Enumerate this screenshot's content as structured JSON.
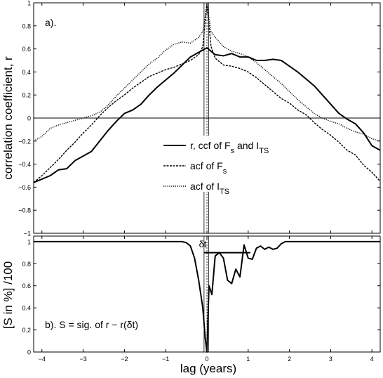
{
  "chart_data": [
    {
      "type": "line",
      "panel_label": "a).",
      "ylabel": "correlation coefficient, r",
      "xlim": [
        -4.2,
        4.2
      ],
      "ylim": [
        -1,
        1
      ],
      "yticks": [
        -1,
        -0.8,
        -0.6,
        -0.4,
        -0.2,
        0,
        0.2,
        0.4,
        0.6,
        0.8,
        1
      ],
      "ytick_labels": [
        "−1",
        "−0.8",
        "−0.6",
        "−0.4",
        "−0.2",
        "0",
        "0.2",
        "0.4",
        "0.6",
        "0.8",
        "1"
      ],
      "reference_lines": {
        "zero_line_y": 0,
        "vertical_lines_x": [
          -0.07,
          0,
          0.04
        ]
      },
      "legend": {
        "placement": "center-right",
        "entries": [
          {
            "base": "r, ccf of F",
            "sub": "s",
            "mid": " and I",
            "sub2": "TS",
            "style": "solid-thick"
          },
          {
            "base": "acf of F",
            "sub": "s",
            "style": "dashed"
          },
          {
            "base": "acf of I",
            "sub": "TS",
            "style": "dotted"
          }
        ]
      },
      "series": [
        {
          "style": "solid-thick",
          "x": [
            -4.2,
            -4.0,
            -3.8,
            -3.6,
            -3.4,
            -3.2,
            -3.0,
            -2.8,
            -2.6,
            -2.4,
            -2.2,
            -2.0,
            -1.8,
            -1.6,
            -1.4,
            -1.2,
            -1.0,
            -0.8,
            -0.6,
            -0.4,
            -0.2,
            0.0,
            0.2,
            0.4,
            0.6,
            0.8,
            1.0,
            1.2,
            1.4,
            1.6,
            1.8,
            2.0,
            2.2,
            2.4,
            2.6,
            2.8,
            3.0,
            3.2,
            3.4,
            3.6,
            3.8,
            4.0,
            4.2
          ],
          "y": [
            -0.56,
            -0.53,
            -0.5,
            -0.45,
            -0.44,
            -0.37,
            -0.33,
            -0.29,
            -0.2,
            -0.11,
            -0.03,
            0.04,
            0.07,
            0.12,
            0.2,
            0.27,
            0.33,
            0.39,
            0.46,
            0.53,
            0.57,
            0.61,
            0.55,
            0.54,
            0.56,
            0.53,
            0.53,
            0.5,
            0.5,
            0.51,
            0.5,
            0.45,
            0.4,
            0.34,
            0.28,
            0.2,
            0.12,
            0.04,
            -0.01,
            -0.05,
            -0.13,
            -0.24,
            -0.28
          ]
        },
        {
          "style": "dashed",
          "x": [
            -4.2,
            -4.0,
            -3.8,
            -3.6,
            -3.4,
            -3.2,
            -3.0,
            -2.8,
            -2.6,
            -2.4,
            -2.2,
            -2.0,
            -1.8,
            -1.6,
            -1.4,
            -1.2,
            -1.0,
            -0.8,
            -0.6,
            -0.4,
            -0.2,
            -0.1,
            0.0,
            0.1,
            0.2,
            0.4,
            0.6,
            0.8,
            1.0,
            1.2,
            1.4,
            1.6,
            1.8,
            2.0,
            2.2,
            2.4,
            2.6,
            2.8,
            3.0,
            3.2,
            3.4,
            3.6,
            3.8,
            4.0,
            4.2
          ],
          "y": [
            -0.56,
            -0.5,
            -0.43,
            -0.36,
            -0.28,
            -0.21,
            -0.13,
            -0.06,
            0.02,
            0.09,
            0.15,
            0.2,
            0.26,
            0.31,
            0.36,
            0.39,
            0.42,
            0.44,
            0.47,
            0.5,
            0.55,
            0.62,
            0.99,
            0.62,
            0.52,
            0.46,
            0.45,
            0.43,
            0.4,
            0.35,
            0.29,
            0.23,
            0.17,
            0.13,
            0.07,
            0.03,
            -0.04,
            -0.1,
            -0.15,
            -0.21,
            -0.28,
            -0.32,
            -0.41,
            -0.47,
            -0.55
          ]
        },
        {
          "style": "dotted",
          "x": [
            -4.2,
            -4.0,
            -3.8,
            -3.6,
            -3.4,
            -3.2,
            -3.0,
            -2.8,
            -2.6,
            -2.4,
            -2.2,
            -2.0,
            -1.8,
            -1.6,
            -1.4,
            -1.2,
            -1.0,
            -0.8,
            -0.6,
            -0.4,
            -0.2,
            -0.1,
            0.0,
            0.1,
            0.2,
            0.4,
            0.6,
            0.8,
            1.0,
            1.2,
            1.4,
            1.6,
            1.8,
            2.0,
            2.2,
            2.4,
            2.6,
            2.8,
            3.0,
            3.2,
            3.4,
            3.6,
            3.8,
            4.0,
            4.2
          ],
          "y": [
            -0.2,
            -0.16,
            -0.09,
            -0.06,
            -0.04,
            -0.02,
            0.0,
            0.02,
            0.05,
            0.11,
            0.19,
            0.26,
            0.33,
            0.4,
            0.47,
            0.52,
            0.59,
            0.64,
            0.66,
            0.65,
            0.7,
            0.75,
            0.99,
            0.75,
            0.7,
            0.62,
            0.58,
            0.56,
            0.53,
            0.48,
            0.42,
            0.36,
            0.3,
            0.23,
            0.16,
            0.1,
            0.04,
            0.0,
            -0.03,
            -0.05,
            -0.09,
            -0.12,
            -0.14,
            -0.18,
            -0.2
          ]
        }
      ]
    },
    {
      "type": "line",
      "panel_label": "b). S = sig. of r − r(δt)",
      "ylabel": "[S in %] /100",
      "xlabel": "lag (years)",
      "xlim": [
        -4.2,
        4.2
      ],
      "ylim": [
        0,
        1.05
      ],
      "xticks": [
        -4,
        -3,
        -2,
        -1,
        0,
        1,
        2,
        3,
        4
      ],
      "xtick_labels": [
        "−4",
        "−3",
        "−2",
        "−1",
        "0",
        "1",
        "2",
        "3",
        "4"
      ],
      "yticks": [
        0,
        0.2,
        0.4,
        0.6,
        0.8,
        1
      ],
      "ytick_labels": [
        "0",
        "0.2",
        "0.4",
        "0.6",
        "0.8",
        "1"
      ],
      "annotation": "δt",
      "delta_t_bar": {
        "x": [
          -0.07,
          1.05
        ],
        "y": 0.9
      },
      "reference_lines": {
        "vertical_lines_x": [
          -0.07,
          0,
          0.04
        ]
      },
      "series": [
        {
          "style": "solid-thick",
          "x": [
            -4.2,
            -0.6,
            -0.5,
            -0.4,
            -0.3,
            -0.2,
            -0.1,
            -0.04,
            0.0,
            0.05,
            0.12,
            0.2,
            0.3,
            0.4,
            0.5,
            0.6,
            0.7,
            0.8,
            0.9,
            1.0,
            1.1,
            1.2,
            1.3,
            1.4,
            1.5,
            1.6,
            1.7,
            1.8,
            1.9,
            2.0,
            4.2
          ],
          "y": [
            1.0,
            1.0,
            0.99,
            0.96,
            0.85,
            0.65,
            0.4,
            0.12,
            0.0,
            0.6,
            0.52,
            0.87,
            0.9,
            0.85,
            0.65,
            0.62,
            0.75,
            0.68,
            0.97,
            0.85,
            0.84,
            0.94,
            0.96,
            0.93,
            0.95,
            0.93,
            0.94,
            0.98,
            1.0,
            1.0,
            1.0
          ]
        }
      ]
    }
  ]
}
